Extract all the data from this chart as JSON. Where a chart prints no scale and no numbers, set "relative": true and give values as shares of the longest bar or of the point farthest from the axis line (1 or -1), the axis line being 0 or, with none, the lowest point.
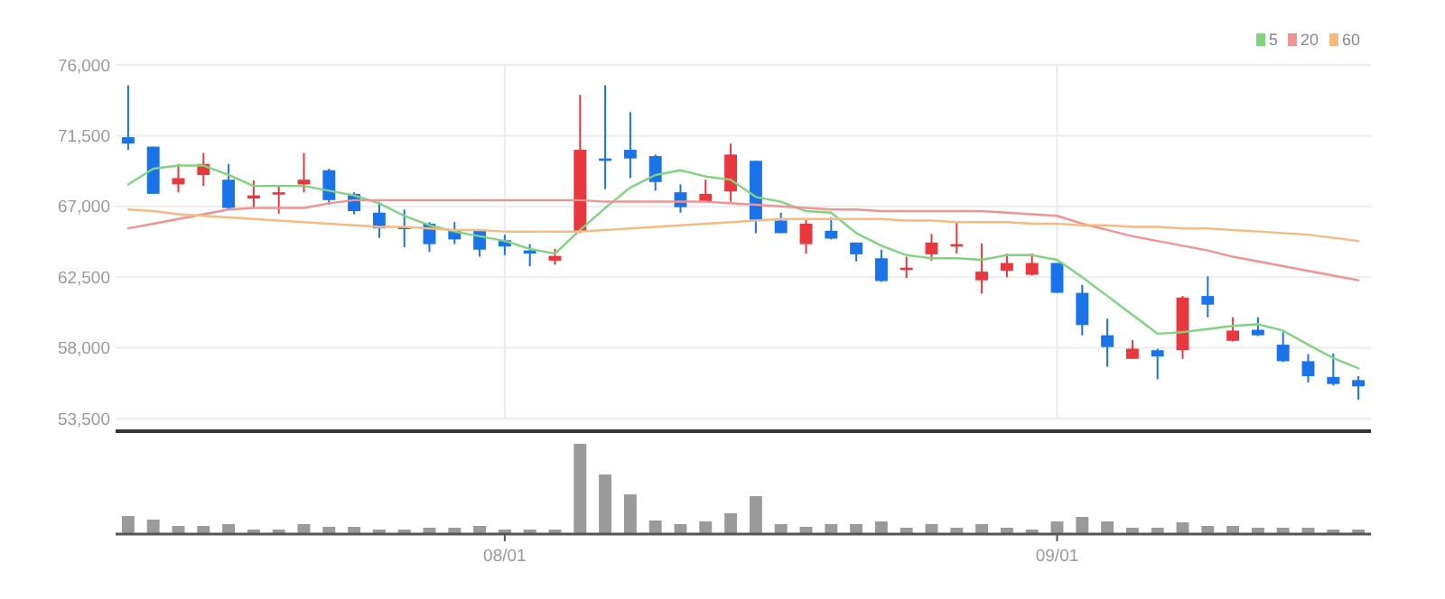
{
  "chart_data": [
    {
      "type": "candlestick",
      "tick_labels": "y",
      "grid": true,
      "legend": "top right",
      "categories": [
        null,
        null,
        null,
        null,
        null,
        null,
        null,
        null,
        null,
        null,
        null,
        null,
        null,
        null,
        null,
        null,
        null,
        null,
        null,
        null,
        null,
        null,
        null,
        null,
        null,
        null,
        null,
        null,
        null,
        null,
        null,
        null,
        null,
        null,
        null,
        null,
        null,
        null,
        null,
        null,
        null,
        null,
        null,
        null,
        null,
        null,
        null,
        null,
        null,
        null
      ],
      "ylim": [
        53500,
        76000
      ],
      "yticks": [
        {
          "value": 53500,
          "label": "53,500"
        },
        {
          "value": 58000,
          "label": "58,000"
        },
        {
          "value": 62500,
          "label": "62,500"
        },
        {
          "value": 67000,
          "label": "67,000"
        },
        {
          "value": 71500,
          "label": "71,500"
        },
        {
          "value": 76000,
          "label": "76,000"
        }
      ],
      "ohlc": [
        [
          71400,
          74700,
          70600,
          71000
        ],
        [
          70800,
          70800,
          67800,
          67800
        ],
        [
          68400,
          69700,
          67900,
          68800
        ],
        [
          69000,
          70400,
          68300,
          69700
        ],
        [
          68700,
          69700,
          66800,
          66900
        ],
        [
          67500,
          68650,
          66900,
          67700
        ],
        [
          67750,
          68350,
          66550,
          67900
        ],
        [
          68400,
          70400,
          67900,
          68700
        ],
        [
          69300,
          69400,
          67100,
          67400
        ],
        [
          67800,
          67900,
          66500,
          66700
        ],
        [
          66600,
          67300,
          65000,
          65600
        ],
        [
          65700,
          66800,
          64400,
          65550
        ],
        [
          65900,
          66000,
          64100,
          64600
        ],
        [
          65500,
          66000,
          64600,
          64900
        ],
        [
          65500,
          65500,
          63800,
          64250
        ],
        [
          64850,
          65200,
          63900,
          64450
        ],
        [
          64200,
          64600,
          63200,
          64000
        ],
        [
          63550,
          64300,
          63300,
          63850
        ],
        [
          65400,
          74100,
          65300,
          70600
        ],
        [
          70050,
          74700,
          68100,
          69900
        ],
        [
          70600,
          73000,
          68800,
          70050
        ],
        [
          70200,
          70300,
          68000,
          68550
        ],
        [
          67900,
          68400,
          66600,
          66950
        ],
        [
          67300,
          68700,
          67300,
          67800
        ],
        [
          67950,
          71000,
          67300,
          70300
        ],
        [
          69900,
          69900,
          65300,
          66150
        ],
        [
          66100,
          66600,
          65300,
          65300
        ],
        [
          64600,
          66200,
          64000,
          65900
        ],
        [
          65450,
          66300,
          64900,
          64950
        ],
        [
          64700,
          64700,
          63500,
          63950
        ],
        [
          63700,
          64250,
          62200,
          62250
        ],
        [
          62950,
          63800,
          62450,
          63100
        ],
        [
          63950,
          65250,
          63550,
          64700
        ],
        [
          64450,
          66000,
          64000,
          64600
        ],
        [
          62300,
          64650,
          61450,
          62850
        ],
        [
          62900,
          64000,
          62500,
          63400
        ],
        [
          62650,
          64000,
          62600,
          63400
        ],
        [
          63400,
          63400,
          61500,
          61500
        ],
        [
          61500,
          62000,
          58800,
          59450
        ],
        [
          58800,
          59850,
          56800,
          58050
        ],
        [
          57300,
          58500,
          57300,
          57950
        ],
        [
          57850,
          57950,
          56000,
          57450
        ],
        [
          57850,
          61300,
          57300,
          61200
        ],
        [
          61300,
          62550,
          59950,
          60750
        ],
        [
          58450,
          59950,
          58400,
          59100
        ],
        [
          59150,
          59950,
          58750,
          58800
        ],
        [
          58200,
          59000,
          57100,
          57150
        ],
        [
          57150,
          57600,
          55800,
          56200
        ],
        [
          56150,
          57650,
          55600,
          55700
        ],
        [
          55950,
          56200,
          54700,
          55550
        ]
      ],
      "colors": [
        "#1a73e8",
        "#1a73e8",
        "#e8383d",
        "#e8383d",
        "#1a73e8",
        "#e8383d",
        "#e8383d",
        "#e8383d",
        "#1a73e8",
        "#1a73e8",
        "#1a73e8",
        "#1a73e8",
        "#1a73e8",
        "#1a73e8",
        "#1a73e8",
        "#1a73e8",
        "#1a73e8",
        "#e8383d",
        "#e8383d",
        "#1a73e8",
        "#1a73e8",
        "#1a73e8",
        "#1a73e8",
        "#e8383d",
        "#e8383d",
        "#1a73e8",
        "#1a73e8",
        "#e8383d",
        "#1a73e8",
        "#1a73e8",
        "#1a73e8",
        "#e8383d",
        "#e8383d",
        "#e8383d",
        "#e8383d",
        "#e8383d",
        "#e8383d",
        "#1a73e8",
        "#1a73e8",
        "#1a73e8",
        "#e8383d",
        "#1a73e8",
        "#e8383d",
        "#1a73e8",
        "#e8383d",
        "#1a73e8",
        "#1a73e8",
        "#1a73e8",
        "#1a73e8",
        "#1a73e8"
      ],
      "series": [
        {
          "type": "line",
          "name": "5",
          "color": "#7fd47f",
          "values": [
            68400,
            69400,
            69600,
            69600,
            69000,
            68300,
            68300,
            68300,
            68000,
            67700,
            67200,
            66400,
            65800,
            65400,
            65100,
            64800,
            64300,
            64000,
            65500,
            66900,
            68200,
            69000,
            69300,
            68900,
            68700,
            67600,
            67300,
            66700,
            66600,
            65300,
            64500,
            63900,
            63700,
            63700,
            63600,
            63900,
            63900,
            63600,
            62500,
            61300,
            60100,
            58900,
            59000,
            59200,
            59400,
            59500,
            59100,
            58200,
            57350,
            56700
          ]
        },
        {
          "type": "line",
          "name": "20",
          "color": "#f29393",
          "values": [
            65600,
            65900,
            66200,
            66500,
            66800,
            66900,
            66900,
            66900,
            67200,
            67400,
            67400,
            67400,
            67400,
            67400,
            67400,
            67400,
            67400,
            67400,
            67400,
            67300,
            67300,
            67300,
            67300,
            67300,
            67200,
            67100,
            67000,
            66900,
            66800,
            66800,
            66700,
            66700,
            66700,
            66700,
            66700,
            66600,
            66500,
            66400,
            65900,
            65500,
            65100,
            64800,
            64500,
            64200,
            63800,
            63500,
            63200,
            62900,
            62600,
            62300
          ]
        },
        {
          "type": "line",
          "name": "60",
          "color": "#f5bb80",
          "values": [
            66800,
            66700,
            66500,
            66400,
            66300,
            66200,
            66100,
            66000,
            65900,
            65800,
            65700,
            65700,
            65600,
            65500,
            65500,
            65400,
            65400,
            65400,
            65400,
            65500,
            65600,
            65700,
            65800,
            65900,
            66000,
            66100,
            66200,
            66200,
            66200,
            66200,
            66200,
            66100,
            66100,
            66000,
            66000,
            66000,
            65900,
            65900,
            65800,
            65800,
            65700,
            65700,
            65600,
            65600,
            65500,
            65400,
            65300,
            65200,
            65000,
            64800
          ]
        }
      ]
    },
    {
      "type": "bar",
      "relative": true,
      "tick_labels": "x",
      "color": "#9a9a9a",
      "categories": [
        null,
        null,
        null,
        null,
        null,
        null,
        null,
        null,
        null,
        null,
        null,
        null,
        null,
        null,
        null,
        "08/01",
        null,
        null,
        null,
        null,
        null,
        null,
        null,
        null,
        null,
        null,
        null,
        null,
        null,
        null,
        null,
        null,
        null,
        null,
        null,
        null,
        null,
        "09/01",
        null,
        null,
        null,
        null,
        null,
        null,
        null,
        null,
        null,
        null,
        null,
        null
      ],
      "values": [
        0.2,
        0.16,
        0.09,
        0.09,
        0.11,
        0.05,
        0.05,
        0.11,
        0.08,
        0.08,
        0.05,
        0.05,
        0.07,
        0.07,
        0.09,
        0.05,
        0.05,
        0.05,
        1,
        0.66,
        0.44,
        0.15,
        0.11,
        0.14,
        0.23,
        0.42,
        0.11,
        0.08,
        0.11,
        0.11,
        0.14,
        0.07,
        0.11,
        0.07,
        0.11,
        0.07,
        0.05,
        0.14,
        0.19,
        0.14,
        0.07,
        0.07,
        0.13,
        0.09,
        0.09,
        0.07,
        0.07,
        0.07,
        0.05,
        0.05
      ]
    }
  ]
}
